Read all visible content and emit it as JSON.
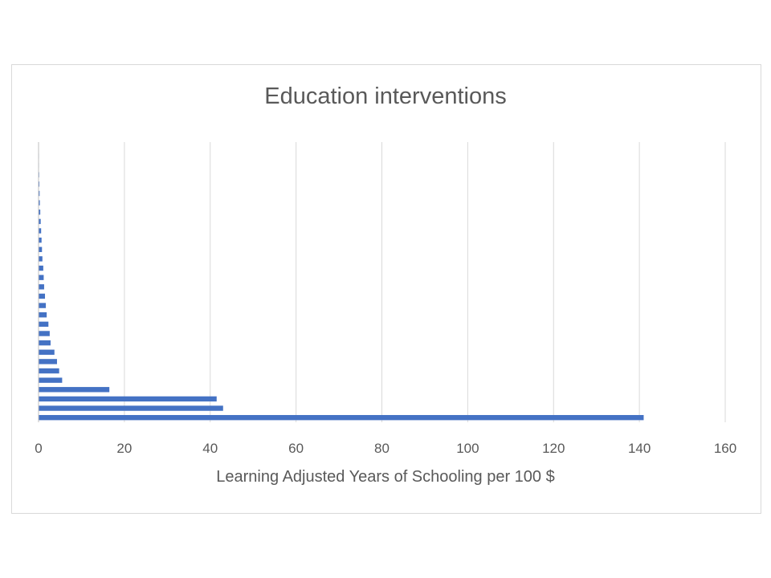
{
  "chart_data": {
    "type": "bar",
    "orientation": "horizontal",
    "title": "Education interventions",
    "xlabel": "Learning Adjusted Years of Schooling per 100 $",
    "ylabel": "",
    "xlim": [
      0,
      160
    ],
    "x_ticks": [
      "0",
      "20",
      "40",
      "60",
      "80",
      "100",
      "120",
      "140",
      "160"
    ],
    "grid": "vertical",
    "legend": "none",
    "bar_color": "#4472c4",
    "values": [
      141,
      43,
      41.5,
      16.5,
      5.5,
      4.8,
      4.3,
      3.7,
      2.8,
      2.6,
      2.3,
      1.9,
      1.7,
      1.5,
      1.3,
      1.2,
      1.1,
      0.9,
      0.8,
      0.7,
      0.6,
      0.5,
      0.4,
      0.3,
      0.25,
      0.2,
      0.15,
      0.1,
      0.1,
      0.05
    ]
  }
}
